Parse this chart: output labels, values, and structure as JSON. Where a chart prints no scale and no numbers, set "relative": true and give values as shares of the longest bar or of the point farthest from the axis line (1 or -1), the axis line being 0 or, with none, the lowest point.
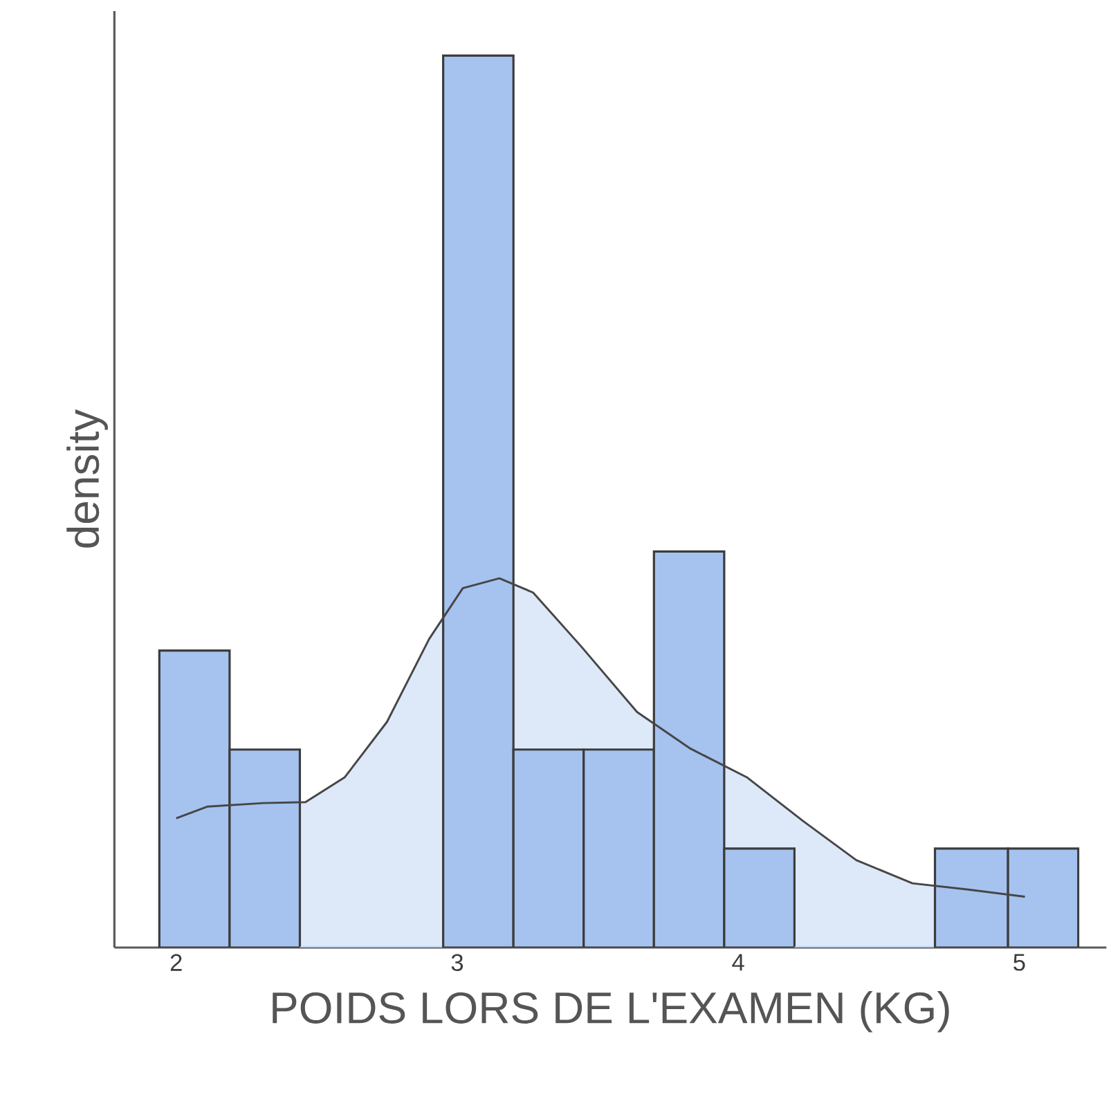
{
  "chart_data": {
    "type": "histogram",
    "relative": true,
    "xlabel": "POIDS LORS DE L'EXAMEN (KG)",
    "ylabel": "density",
    "bins": [
      1.94,
      2.19,
      2.44,
      2.95,
      3.2,
      3.45,
      3.7,
      3.95,
      4.2,
      4.7,
      4.96,
      5.21
    ],
    "values": [
      0.333,
      0.222,
      0,
      1,
      0.222,
      0.222,
      0.444,
      0.111,
      0,
      0.111,
      0.111
    ],
    "color": "#a6c3ef",
    "series": [
      {
        "type": "area",
        "color": "#dde8f8",
        "x": [
          2.0,
          2.11,
          2.31,
          2.46,
          2.6,
          2.75,
          2.9,
          3.02,
          3.15,
          3.27,
          3.44,
          3.64,
          3.83,
          4.03,
          4.23,
          4.42,
          4.62,
          4.82,
          5.02
        ],
        "values": [
          0.145,
          0.158,
          0.162,
          0.163,
          0.191,
          0.253,
          0.346,
          0.403,
          0.414,
          0.398,
          0.338,
          0.264,
          0.223,
          0.191,
          0.142,
          0.098,
          0.072,
          0.065,
          0.057
        ]
      }
    ],
    "xlim": [
      1.78,
      5.31
    ],
    "xticks": [
      2,
      3,
      4,
      5
    ],
    "grid": false
  }
}
